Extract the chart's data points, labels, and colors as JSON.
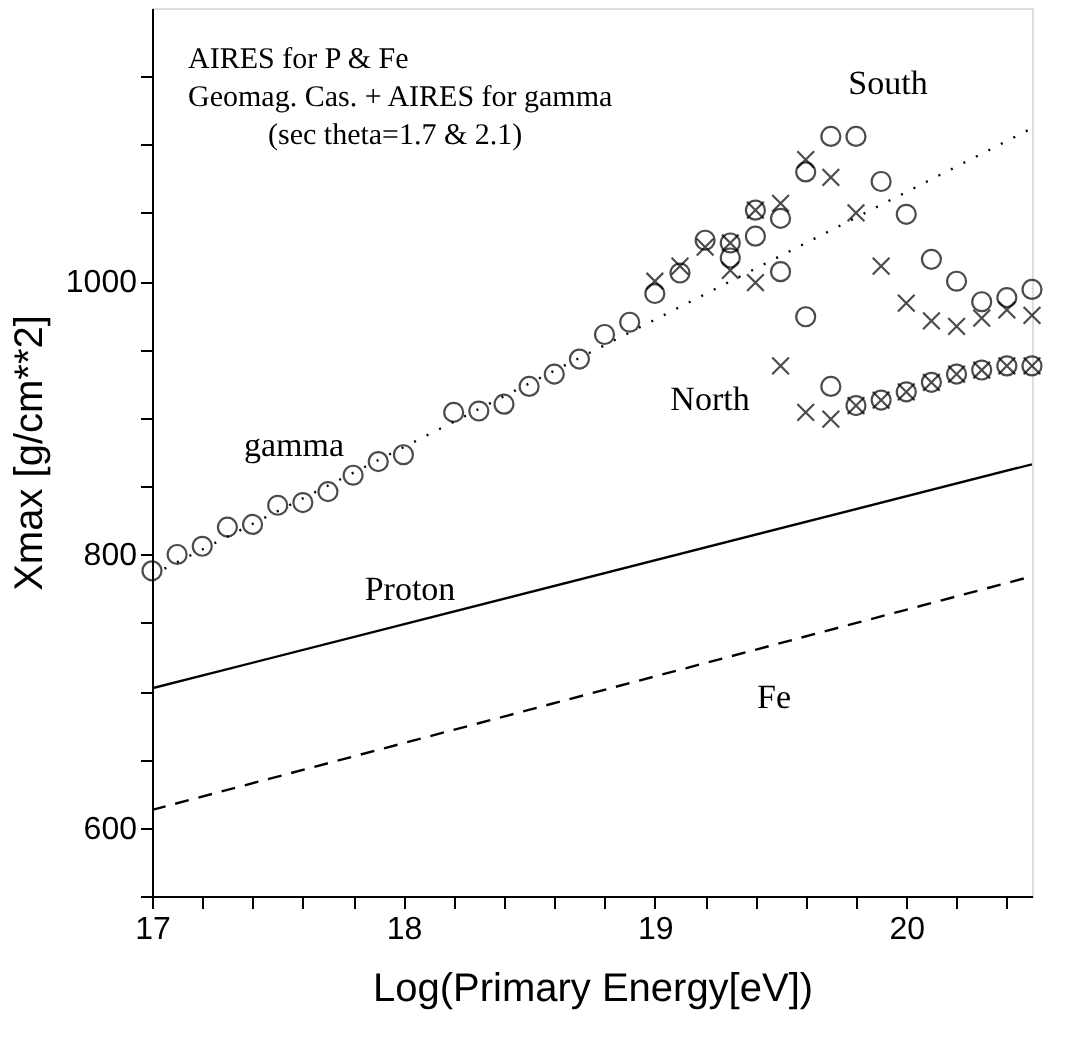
{
  "chart_data": {
    "type": "scatter",
    "xlabel": "Log(Primary Energy[eV])",
    "ylabel": "Xmax [g/cm**2]",
    "xlim": [
      17,
      20.5
    ],
    "ylim": [
      550,
      1200
    ],
    "xticks": [
      17,
      {
        "value": 17.2,
        "label": null
      },
      {
        "value": 17.4,
        "label": null
      },
      {
        "value": 17.6,
        "label": null
      },
      {
        "value": 17.8,
        "label": null
      },
      18,
      {
        "value": 18.2,
        "label": null
      },
      {
        "value": 18.4,
        "label": null
      },
      {
        "value": 18.6,
        "label": null
      },
      {
        "value": 18.8,
        "label": null
      },
      19,
      {
        "value": 19.2,
        "label": null
      },
      {
        "value": 19.4,
        "label": null
      },
      {
        "value": 19.6,
        "label": null
      },
      {
        "value": 19.8,
        "label": null
      },
      20,
      {
        "value": 20.2,
        "label": null
      },
      {
        "value": 20.4,
        "label": null
      }
    ],
    "yticks": [
      {
        "value": 550,
        "label": null
      },
      600,
      {
        "value": 650,
        "label": null
      },
      {
        "value": 700,
        "label": null
      },
      {
        "value": 750,
        "label": null
      },
      800,
      {
        "value": 850,
        "label": null
      },
      {
        "value": 900,
        "label": null
      },
      {
        "value": 950,
        "label": null
      },
      1000,
      {
        "value": 1050,
        "label": null
      },
      {
        "value": 1100,
        "label": null
      },
      {
        "value": 1150,
        "label": null
      }
    ],
    "grid": false,
    "series": [
      {
        "type": "line",
        "line_style": "solid",
        "color": "#000000",
        "x": [
          17,
          20.5
        ],
        "values": [
          702,
          866
        ]
      },
      {
        "type": "line",
        "line_style": "dashed",
        "color": "#000000",
        "x": [
          17,
          20.5
        ],
        "values": [
          613,
          784
        ]
      },
      {
        "type": "line",
        "line_style": "dotted",
        "color": "#000000",
        "x": [
          17,
          20.5
        ],
        "values": [
          785,
          1112
        ]
      },
      {
        "marker": "circle",
        "color": "#000000",
        "x": [
          17.0,
          17.1,
          17.2,
          17.3,
          17.4,
          17.5,
          17.6,
          17.7,
          17.8,
          17.9,
          18.0,
          18.2,
          18.3,
          18.4,
          18.5,
          18.6,
          18.7,
          18.8,
          18.9,
          19.0,
          19.1,
          19.2,
          19.3,
          19.3,
          19.4,
          19.4,
          19.5,
          19.5,
          19.6,
          19.6,
          19.7,
          19.7,
          19.8,
          19.8,
          19.9,
          19.9,
          20.0,
          20.0,
          20.1,
          20.1,
          20.2,
          20.2,
          20.3,
          20.3,
          20.4,
          20.4,
          20.5,
          20.5
        ],
        "values": [
          788,
          800,
          806,
          820,
          822,
          836,
          838,
          846,
          858,
          868,
          873,
          904,
          905,
          910,
          923,
          932,
          943,
          961,
          970,
          991,
          1006,
          1030,
          1028,
          1017,
          1052,
          1033,
          1046,
          1007,
          1080,
          974,
          1106,
          923,
          1106,
          909,
          1073,
          913,
          1049,
          919,
          1016,
          926,
          1000,
          932,
          985,
          935,
          988,
          938,
          994,
          938
        ]
      },
      {
        "type": "scatter",
        "marker": "cross",
        "color": "#000000",
        "x": [
          19.0,
          19.1,
          19.2,
          19.3,
          19.3,
          19.4,
          19.4,
          19.5,
          19.5,
          19.6,
          19.6,
          19.7,
          19.7,
          19.8,
          19.8,
          19.9,
          19.9,
          20.0,
          20.0,
          20.1,
          20.1,
          20.2,
          20.2,
          20.3,
          20.3,
          20.4,
          20.4,
          20.5,
          20.5
        ],
        "values": [
          1000,
          1011,
          1025,
          1028,
          1008,
          1052,
          999,
          1057,
          938,
          1089,
          904,
          1076,
          899,
          1050,
          909,
          1011,
          913,
          984,
          919,
          971,
          926,
          967,
          932,
          973,
          935,
          979,
          938,
          975,
          938
        ]
      }
    ],
    "annotations": [
      "AIRES for P & Fe",
      "Geomag. Cas. + AIRES for gamma",
      "(sec theta=1.7 & 2.1)",
      "South",
      "North",
      "gamma",
      "Proton",
      "Fe"
    ]
  }
}
